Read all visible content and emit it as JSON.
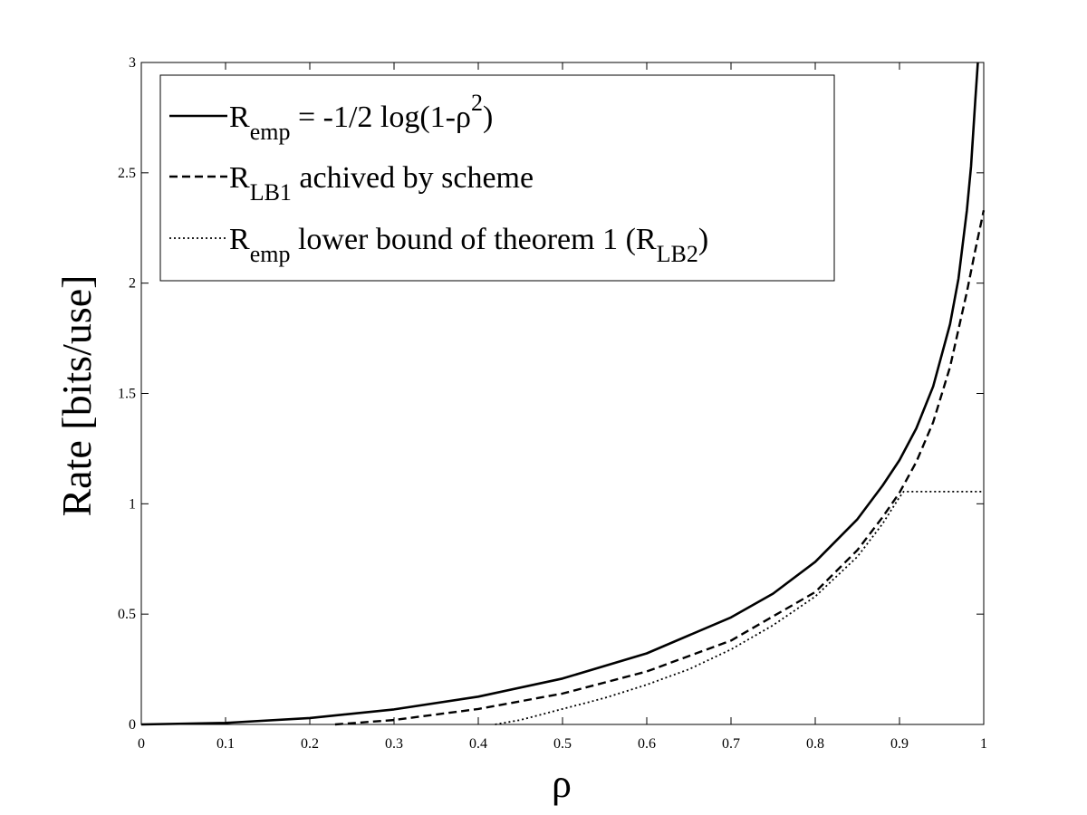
{
  "chart_data": {
    "type": "line",
    "xlabel": "ρ",
    "ylabel": "Rate [bits/use]",
    "xlim": [
      0,
      1
    ],
    "ylim": [
      0,
      3
    ],
    "x_ticks": [
      0,
      0.1,
      0.2,
      0.3,
      0.4,
      0.5,
      0.6,
      0.7,
      0.8,
      0.9,
      1
    ],
    "x_tick_labels": [
      "0",
      "0.1",
      "0.2",
      "0.3",
      "0.4",
      "0.5",
      "0.6",
      "0.7",
      "0.8",
      "0.9",
      "1"
    ],
    "y_ticks": [
      0,
      0.5,
      1,
      1.5,
      2,
      2.5,
      3
    ],
    "y_tick_labels": [
      "0",
      "0.5",
      "1",
      "1.5",
      "2",
      "2.5",
      "3"
    ],
    "grid": false,
    "legend_position": "top-left",
    "series": [
      {
        "line_style": "solid",
        "legend": {
          "parts": [
            {
              "text": "R",
              "sub": false
            },
            {
              "text": "emp",
              "sub": true
            },
            {
              "text": " = -1/2 log(1-ρ",
              "sub": false
            },
            {
              "text": "2",
              "sup": true
            },
            {
              "text": ")",
              "sub": false
            }
          ]
        },
        "x": [
          0,
          0.1,
          0.2,
          0.3,
          0.4,
          0.5,
          0.6,
          0.7,
          0.75,
          0.8,
          0.85,
          0.88,
          0.9,
          0.92,
          0.94,
          0.96,
          0.97,
          0.98,
          0.985,
          0.99,
          0.993
        ],
        "y": [
          0,
          0.007,
          0.029,
          0.068,
          0.126,
          0.208,
          0.322,
          0.485,
          0.593,
          0.737,
          0.93,
          1.083,
          1.198,
          1.342,
          1.532,
          1.814,
          2.02,
          2.33,
          2.53,
          2.83,
          3.0
        ]
      },
      {
        "line_style": "dashed",
        "legend": {
          "parts": [
            {
              "text": "R",
              "sub": false
            },
            {
              "text": "LB1",
              "sub": true
            },
            {
              "text": " achived by scheme",
              "sub": false
            }
          ]
        },
        "x": [
          0.23,
          0.3,
          0.4,
          0.5,
          0.6,
          0.7,
          0.8,
          0.85,
          0.88,
          0.9,
          0.92,
          0.94,
          0.96,
          0.98,
          0.99,
          1.0
        ],
        "y": [
          0,
          0.02,
          0.07,
          0.14,
          0.24,
          0.38,
          0.6,
          0.79,
          0.94,
          1.05,
          1.19,
          1.37,
          1.62,
          1.96,
          2.15,
          2.33
        ]
      },
      {
        "line_style": "dotted",
        "legend": {
          "parts": [
            {
              "text": "R",
              "sub": false
            },
            {
              "text": "emp",
              "sub": true
            },
            {
              "text": " lower bound of theorem 1 (R",
              "sub": false
            },
            {
              "text": "LB2",
              "sub": true
            },
            {
              "text": ")",
              "sub": false
            }
          ]
        },
        "x": [
          0.42,
          0.45,
          0.5,
          0.55,
          0.6,
          0.65,
          0.7,
          0.75,
          0.8,
          0.85,
          0.88,
          0.9,
          0.905,
          0.95,
          1.0
        ],
        "y": [
          0,
          0.02,
          0.07,
          0.12,
          0.18,
          0.25,
          0.34,
          0.45,
          0.58,
          0.76,
          0.91,
          1.03,
          1.055,
          1.055,
          1.055
        ]
      }
    ]
  }
}
